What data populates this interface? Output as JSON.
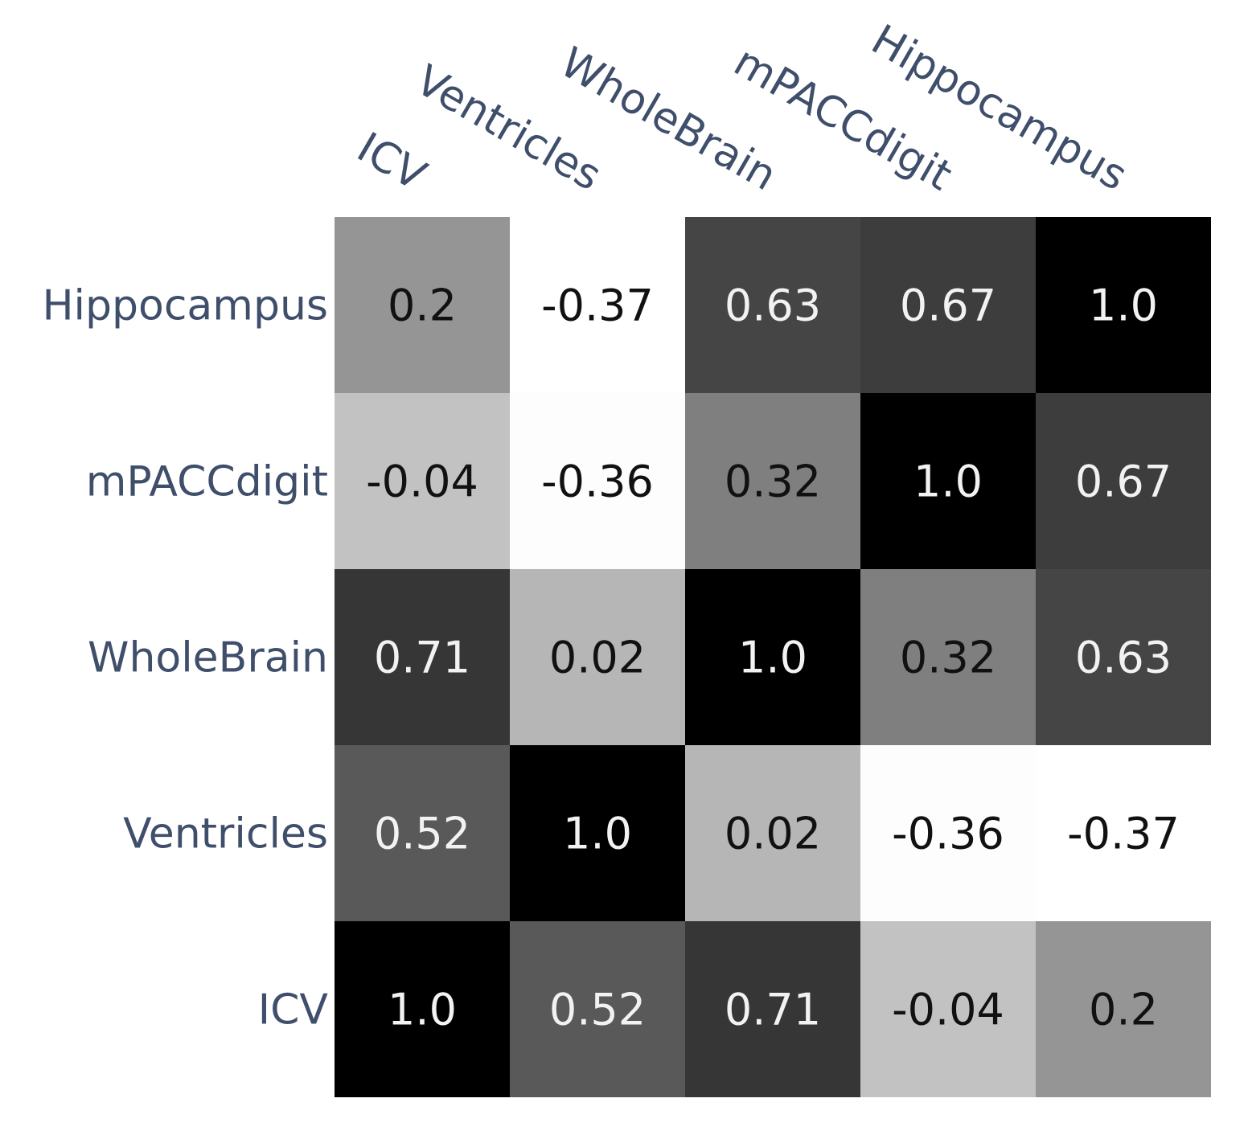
{
  "chart_data": {
    "type": "heatmap",
    "title": "",
    "columns": [
      "ICV",
      "Ventricles",
      "WholeBrain",
      "mPACCdigit",
      "Hippocampus"
    ],
    "rows": [
      "Hippocampus",
      "mPACCdigit",
      "WholeBrain",
      "Ventricles",
      "ICV"
    ],
    "values": [
      [
        0.2,
        -0.37,
        0.63,
        0.67,
        1.0
      ],
      [
        -0.04,
        -0.36,
        0.32,
        1.0,
        0.67
      ],
      [
        0.71,
        0.02,
        1.0,
        0.32,
        0.63
      ],
      [
        0.52,
        1.0,
        0.02,
        -0.36,
        -0.37
      ],
      [
        1.0,
        0.52,
        0.71,
        -0.04,
        0.2
      ]
    ],
    "labels": [
      [
        "0.2",
        "-0.37",
        "0.63",
        "0.67",
        "1.0"
      ],
      [
        "-0.04",
        "-0.36",
        "0.32",
        "1.0",
        "0.67"
      ],
      [
        "0.71",
        "0.02",
        "1.0",
        "0.32",
        "0.63"
      ],
      [
        "0.52",
        "1.0",
        "0.02",
        "-0.36",
        "-0.37"
      ],
      [
        "1.0",
        "0.52",
        "0.71",
        "-0.04",
        "0.2"
      ]
    ],
    "color_range": [
      -0.37,
      1.0
    ],
    "colormap": "greys"
  },
  "colors": {
    "label_text": "#3f4f6b",
    "dark_text": "#111111",
    "light_text": "#f2f2f2"
  }
}
